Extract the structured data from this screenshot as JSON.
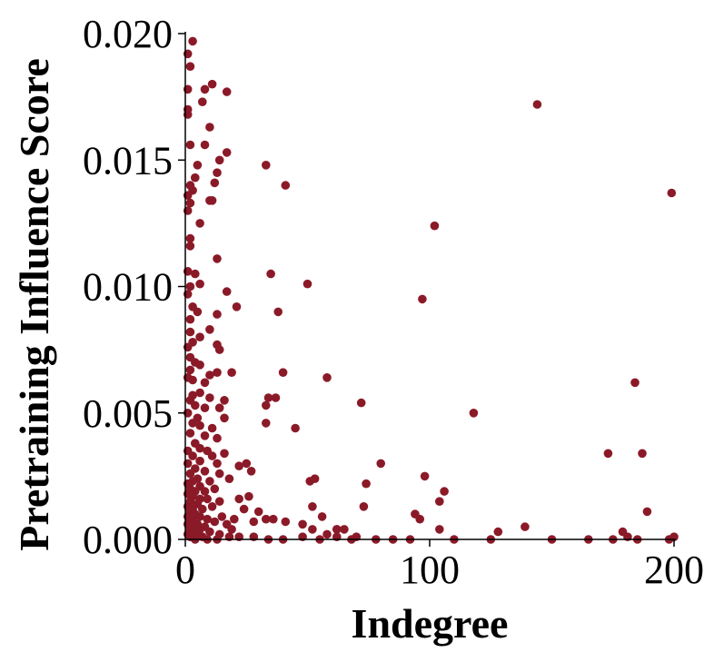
{
  "chart_data": {
    "type": "scatter",
    "title": "",
    "xlabel": "Indegree",
    "ylabel": "Pretraining Influence Score",
    "xlim": [
      0,
      200
    ],
    "ylim": [
      0,
      0.02
    ],
    "xticks": [
      "0",
      "100",
      "200"
    ],
    "yticks": [
      "0.000",
      "0.005",
      "0.010",
      "0.015",
      "0.020"
    ],
    "grid": false,
    "legend": "none",
    "point_color": "#8b1a28",
    "series": [
      {
        "points": [
          [
            3,
            0.0197
          ],
          [
            1,
            0.0192
          ],
          [
            2,
            0.0187
          ],
          [
            1,
            0.0178
          ],
          [
            8,
            0.0178
          ],
          [
            11,
            0.018
          ],
          [
            17,
            0.0177
          ],
          [
            7,
            0.0173
          ],
          [
            1,
            0.017
          ],
          [
            1,
            0.0168
          ],
          [
            10,
            0.0163
          ],
          [
            2,
            0.0156
          ],
          [
            8,
            0.0156
          ],
          [
            17,
            0.0153
          ],
          [
            14,
            0.015
          ],
          [
            5,
            0.0148
          ],
          [
            13,
            0.0145
          ],
          [
            4,
            0.0143
          ],
          [
            12,
            0.0141
          ],
          [
            2,
            0.014
          ],
          [
            3,
            0.0138
          ],
          [
            1,
            0.0136
          ],
          [
            10,
            0.0134
          ],
          [
            11,
            0.0134
          ],
          [
            2,
            0.0133
          ],
          [
            1,
            0.013
          ],
          [
            6,
            0.0125
          ],
          [
            2,
            0.0119
          ],
          [
            2,
            0.0116
          ],
          [
            13,
            0.0111
          ],
          [
            1,
            0.0106
          ],
          [
            4,
            0.0105
          ],
          [
            6,
            0.0101
          ],
          [
            2,
            0.01
          ],
          [
            1,
            0.0097
          ],
          [
            17,
            0.0098
          ],
          [
            3,
            0.0092
          ],
          [
            5,
            0.009
          ],
          [
            21,
            0.0092
          ],
          [
            13,
            0.0089
          ],
          [
            2,
            0.0087
          ],
          [
            10,
            0.0083
          ],
          [
            2,
            0.0082
          ],
          [
            6,
            0.008
          ],
          [
            3,
            0.0078
          ],
          [
            1,
            0.0076
          ],
          [
            13,
            0.0077
          ],
          [
            14,
            0.0075
          ],
          [
            2,
            0.0072
          ],
          [
            4,
            0.007
          ],
          [
            6,
            0.0069
          ],
          [
            2,
            0.0067
          ],
          [
            10,
            0.0065
          ],
          [
            13,
            0.0066
          ],
          [
            19,
            0.0066
          ],
          [
            1,
            0.0064
          ],
          [
            3,
            0.0063
          ],
          [
            8,
            0.0062
          ],
          [
            6,
            0.0058
          ],
          [
            3,
            0.0057
          ],
          [
            2,
            0.0055
          ],
          [
            10,
            0.0056
          ],
          [
            16,
            0.0055
          ],
          [
            4,
            0.0053
          ],
          [
            8,
            0.0052
          ],
          [
            14,
            0.0052
          ],
          [
            1,
            0.005
          ],
          [
            5,
            0.0048
          ],
          [
            16,
            0.0048
          ],
          [
            3,
            0.0046
          ],
          [
            6,
            0.0045
          ],
          [
            11,
            0.0044
          ],
          [
            2,
            0.0042
          ],
          [
            8,
            0.0041
          ],
          [
            13,
            0.004
          ],
          [
            4,
            0.0038
          ],
          [
            6,
            0.0036
          ],
          [
            1,
            0.0035
          ],
          [
            9,
            0.0035
          ],
          [
            16,
            0.0034
          ],
          [
            3,
            0.0033
          ],
          [
            11,
            0.0033
          ],
          [
            6,
            0.0031
          ],
          [
            13,
            0.003
          ],
          [
            1,
            0.003
          ],
          [
            4,
            0.0028
          ],
          [
            8,
            0.0027
          ],
          [
            2,
            0.0026
          ],
          [
            14,
            0.0026
          ],
          [
            5,
            0.0024
          ],
          [
            3,
            0.0023
          ],
          [
            10,
            0.0023
          ],
          [
            1,
            0.0022
          ],
          [
            6,
            0.0021
          ],
          [
            2,
            0.002
          ],
          [
            4,
            0.0019
          ],
          [
            8,
            0.0019
          ],
          [
            12,
            0.002
          ],
          [
            1,
            0.0018
          ],
          [
            3,
            0.0017
          ],
          [
            6,
            0.0016
          ],
          [
            9,
            0.0016
          ],
          [
            14,
            0.0015
          ],
          [
            2,
            0.0015
          ],
          [
            5,
            0.0014
          ],
          [
            1,
            0.0013
          ],
          [
            3,
            0.0012
          ],
          [
            7,
            0.0012
          ],
          [
            11,
            0.0013
          ],
          [
            2,
            0.0011
          ],
          [
            4,
            0.001
          ],
          [
            1,
            0.0009
          ],
          [
            6,
            0.0009
          ],
          [
            9,
            0.0008
          ],
          [
            3,
            0.0008
          ],
          [
            2,
            0.0007
          ],
          [
            5,
            0.0006
          ],
          [
            12,
            0.0007
          ],
          [
            1,
            0.0006
          ],
          [
            4,
            0.0005
          ],
          [
            8,
            0.0005
          ],
          [
            2,
            0.0004
          ],
          [
            6,
            0.0004
          ],
          [
            3,
            0.0003
          ],
          [
            10,
            0.0003
          ],
          [
            1,
            0.0002
          ],
          [
            5,
            0.0002
          ],
          [
            14,
            0.0002
          ],
          [
            2,
            0.0001
          ],
          [
            7,
            0.0001
          ],
          [
            3,
            0.0001
          ],
          [
            18,
            0.0001
          ],
          [
            22,
            0.0001
          ],
          [
            4,
            0.0
          ],
          [
            9,
            0.0
          ],
          [
            13,
            0.0
          ],
          [
            28,
            0.0001
          ],
          [
            34,
            0.0
          ],
          [
            40,
            0.0
          ],
          [
            48,
            0.0001
          ],
          [
            55,
            0.0
          ],
          [
            62,
            0.0001
          ],
          [
            68,
            0.0
          ],
          [
            78,
            0.0
          ],
          [
            85,
            0.0
          ],
          [
            92,
            0.0
          ],
          [
            110,
            0.0
          ],
          [
            125,
            0.0
          ],
          [
            150,
            0.0
          ],
          [
            165,
            0.0
          ],
          [
            185,
            0.0
          ],
          [
            198,
            0.0
          ],
          [
            22,
            0.0029
          ],
          [
            25,
            0.003
          ],
          [
            27,
            0.0027
          ],
          [
            18,
            0.0024
          ],
          [
            22,
            0.0016
          ],
          [
            26,
            0.0017
          ],
          [
            24,
            0.0012
          ],
          [
            30,
            0.0011
          ],
          [
            28,
            0.0007
          ],
          [
            33,
            0.0008
          ],
          [
            36,
            0.0008
          ],
          [
            41,
            0.0007
          ],
          [
            48,
            0.0006
          ],
          [
            52,
            0.0004
          ],
          [
            58,
            0.0002
          ],
          [
            62,
            0.0004
          ],
          [
            65,
            0.0004
          ],
          [
            70,
            0.0001
          ],
          [
            15,
            0.0009
          ],
          [
            17,
            0.0006
          ],
          [
            20,
            0.0008
          ],
          [
            19,
            0.0004
          ],
          [
            33,
            0.0148
          ],
          [
            41,
            0.014
          ],
          [
            35,
            0.0105
          ],
          [
            38,
            0.009
          ],
          [
            34,
            0.0056
          ],
          [
            37,
            0.0056
          ],
          [
            33,
            0.0053
          ],
          [
            33,
            0.0046
          ],
          [
            40,
            0.0066
          ],
          [
            45,
            0.0044
          ],
          [
            50,
            0.0101
          ],
          [
            58,
            0.0064
          ],
          [
            53,
            0.0024
          ],
          [
            51,
            0.0023
          ],
          [
            52,
            0.0013
          ],
          [
            56,
            0.0009
          ],
          [
            62,
            0.0004
          ],
          [
            72,
            0.0054
          ],
          [
            73,
            0.0013
          ],
          [
            74,
            0.0022
          ],
          [
            80,
            0.003
          ],
          [
            94,
            0.001
          ],
          [
            96,
            0.0008
          ],
          [
            98,
            0.0025
          ],
          [
            97,
            0.0095
          ],
          [
            102,
            0.0124
          ],
          [
            104,
            0.0015
          ],
          [
            106,
            0.0019
          ],
          [
            104,
            0.0004
          ],
          [
            118,
            0.005
          ],
          [
            128,
            0.0003
          ],
          [
            139,
            0.0005
          ],
          [
            144,
            0.0172
          ],
          [
            173,
            0.0034
          ],
          [
            175,
            0.0
          ],
          [
            179,
            0.0003
          ],
          [
            181,
            0.0001
          ],
          [
            184,
            0.0062
          ],
          [
            187,
            0.0034
          ],
          [
            189,
            0.0011
          ],
          [
            199,
            0.0137
          ],
          [
            200,
            0.0001
          ]
        ]
      }
    ]
  }
}
